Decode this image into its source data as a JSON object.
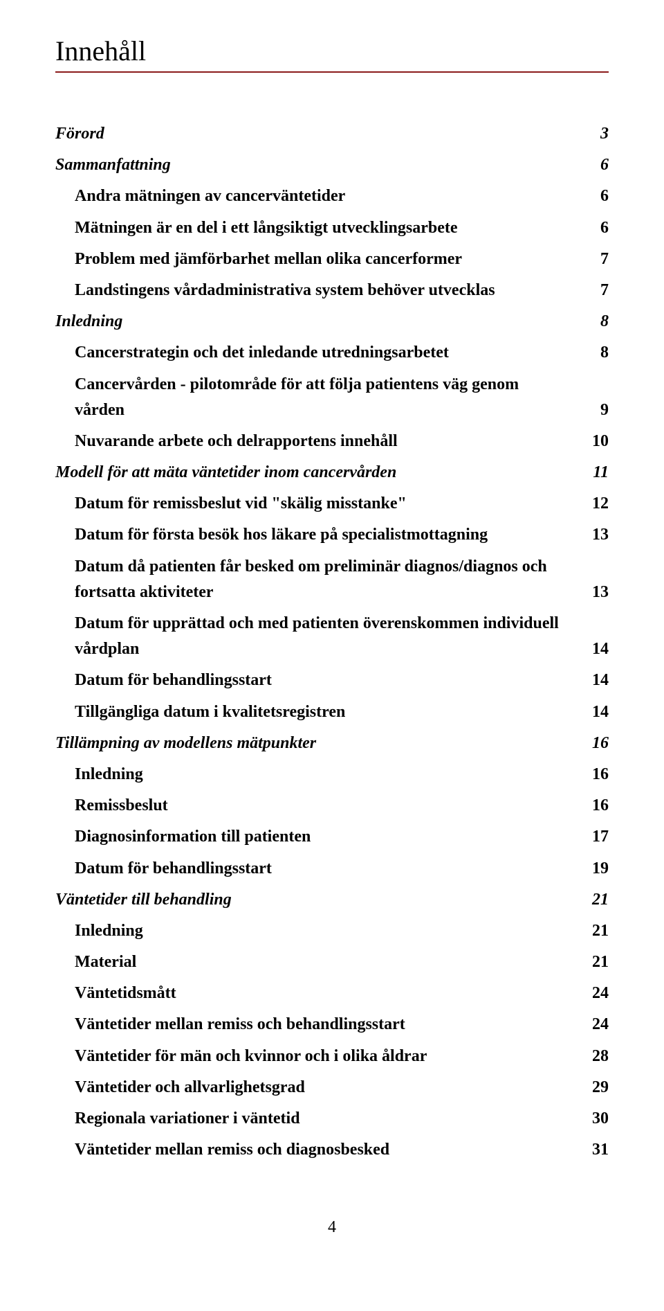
{
  "title": "Innehåll",
  "page_number": "4",
  "colors": {
    "text": "#000000",
    "rule": "#8b1a1a",
    "background": "#ffffff"
  },
  "typography": {
    "title_fontsize_pt": 30,
    "body_fontsize_pt": 18,
    "font_family": "serif"
  },
  "toc": [
    {
      "level": 0,
      "label": "Förord",
      "page": "3"
    },
    {
      "level": 0,
      "label": "Sammanfattning",
      "page": "6"
    },
    {
      "level": 1,
      "label": "Andra mätningen av cancerväntetider",
      "page": "6"
    },
    {
      "level": 1,
      "label": "Mätningen är en del i ett långsiktigt utvecklingsarbete",
      "page": "6"
    },
    {
      "level": 1,
      "label": "Problem med jämförbarhet mellan olika cancerformer",
      "page": "7"
    },
    {
      "level": 1,
      "label": "Landstingens vårdadministrativa system behöver utvecklas",
      "page": "7"
    },
    {
      "level": 0,
      "label": "Inledning",
      "page": "8"
    },
    {
      "level": 1,
      "label": "Cancerstrategin och det inledande utredningsarbetet",
      "page": "8"
    },
    {
      "level": 1,
      "label": "Cancervården - pilotområde för att följa patientens väg genom vården",
      "page": "9"
    },
    {
      "level": 1,
      "label": "Nuvarande arbete och delrapportens innehåll",
      "page": "10"
    },
    {
      "level": 0,
      "label": "Modell för att mäta väntetider inom cancervården",
      "page": "11"
    },
    {
      "level": 1,
      "label": "Datum för remissbeslut vid \"skälig misstanke\"",
      "page": "12"
    },
    {
      "level": 1,
      "label": "Datum för första besök hos läkare på specialistmottagning",
      "page": "13"
    },
    {
      "level": 1,
      "label": "Datum då patienten får besked om preliminär diagnos/diagnos och fortsatta aktiviteter",
      "page": "13"
    },
    {
      "level": 1,
      "label": "Datum för upprättad och med patienten överenskommen individuell vårdplan",
      "page": "14"
    },
    {
      "level": 1,
      "label": "Datum för behandlingsstart",
      "page": "14"
    },
    {
      "level": 1,
      "label": "Tillgängliga datum i kvalitetsregistren",
      "page": "14"
    },
    {
      "level": 0,
      "label": "Tillämpning av modellens mätpunkter",
      "page": "16"
    },
    {
      "level": 1,
      "label": "Inledning",
      "page": "16"
    },
    {
      "level": 1,
      "label": "Remissbeslut",
      "page": "16"
    },
    {
      "level": 1,
      "label": "Diagnosinformation till patienten",
      "page": "17"
    },
    {
      "level": 1,
      "label": "Datum för behandlingsstart",
      "page": "19"
    },
    {
      "level": 0,
      "label": "Väntetider till behandling",
      "page": "21"
    },
    {
      "level": 1,
      "label": "Inledning",
      "page": "21"
    },
    {
      "level": 1,
      "label": "Material",
      "page": "21"
    },
    {
      "level": 1,
      "label": "Väntetidsmått",
      "page": "24"
    },
    {
      "level": 1,
      "label": "Väntetider mellan remiss och behandlingsstart",
      "page": "24"
    },
    {
      "level": 1,
      "label": "Väntetider för män och kvinnor och i olika åldrar",
      "page": "28"
    },
    {
      "level": 1,
      "label": "Väntetider och allvarlighetsgrad",
      "page": "29"
    },
    {
      "level": 1,
      "label": "Regionala variationer i väntetid",
      "page": "30"
    },
    {
      "level": 1,
      "label": "Väntetider mellan remiss och diagnosbesked",
      "page": "31"
    }
  ]
}
